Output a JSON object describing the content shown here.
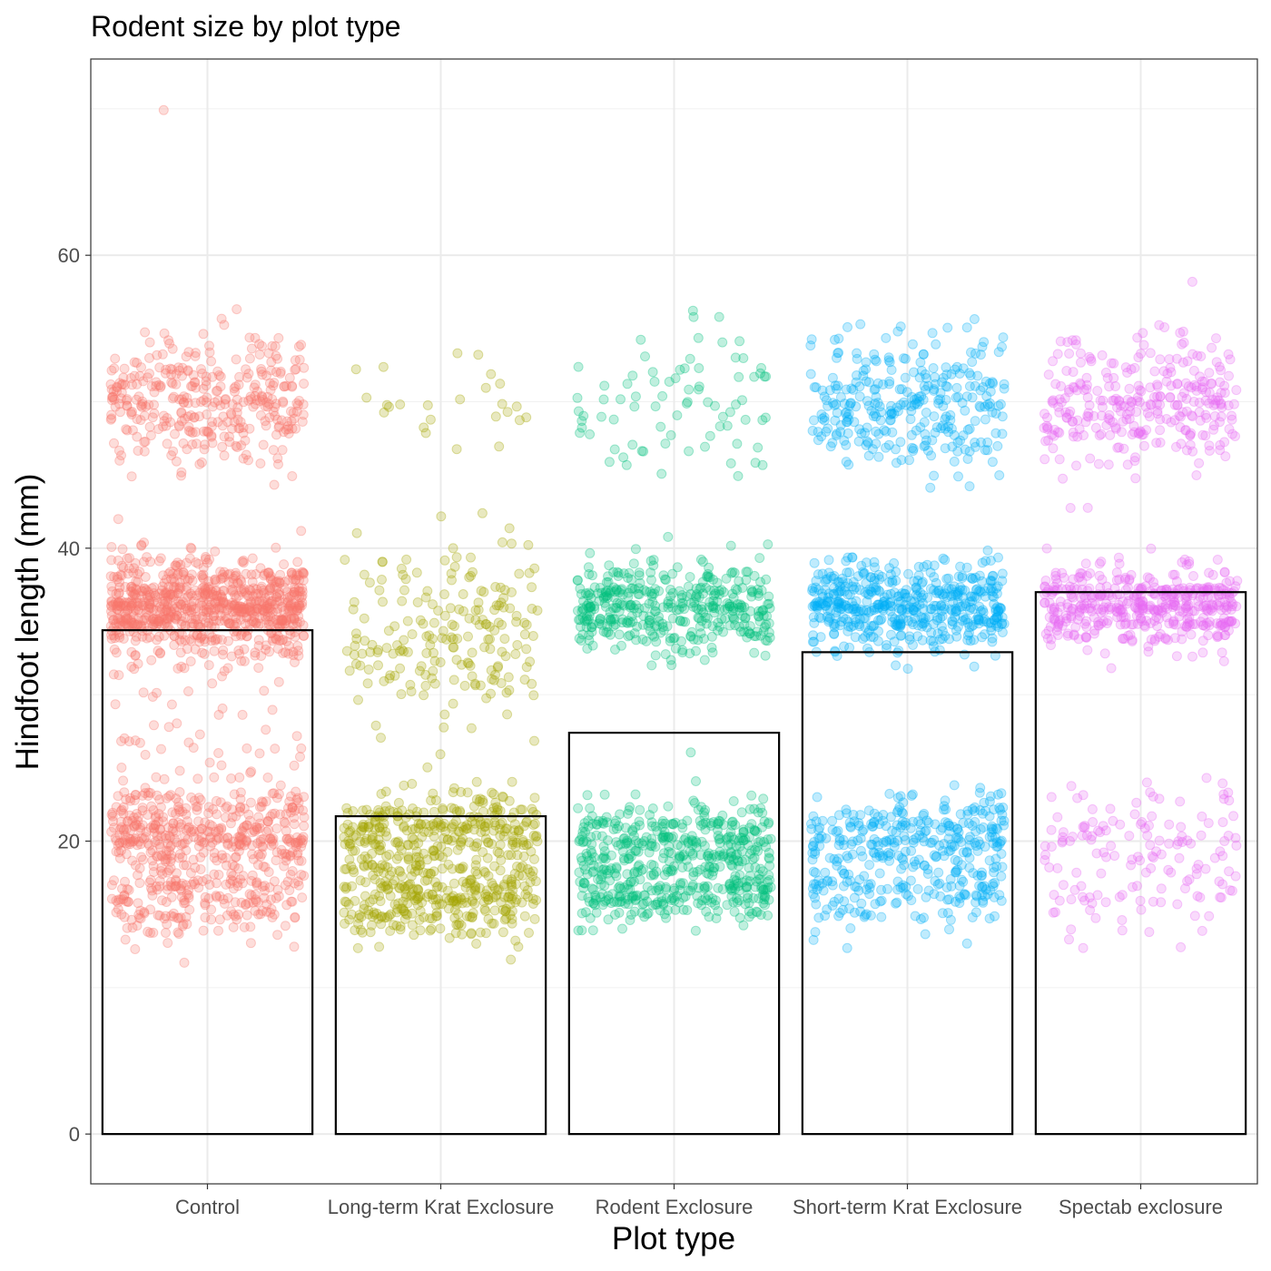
{
  "chart_data": {
    "type": "bar",
    "title": "Rodent size by plot type",
    "xlabel": "Plot type",
    "ylabel": "Hindfoot length (mm)",
    "categories": [
      "Control",
      "Long-term Krat Exclosure",
      "Rodent Exclosure",
      "Short-term Krat Exclosure",
      "Spectab exclosure"
    ],
    "values": [
      34.4,
      21.7,
      27.4,
      32.9,
      37.0
    ],
    "ylim": [
      -3.4,
      73.4
    ],
    "yticks": [
      "0",
      "20",
      "40",
      "60"
    ],
    "ytick_values": [
      0,
      20,
      40,
      60
    ],
    "grid": true,
    "bar_style": "hollow black outline",
    "overlay": {
      "type": "jittered scatter",
      "alpha": 0.25,
      "colors": [
        "#F8766D",
        "#A3A500",
        "#00BF7D",
        "#00B0F6",
        "#E76BF3"
      ],
      "clusters": [
        [
          {
            "mean": 50,
            "sd": 2.2,
            "n": 350
          },
          {
            "mean": 36,
            "sd": 1.6,
            "n": 800
          },
          {
            "mean": 20.5,
            "sd": 1.5,
            "n": 400
          },
          {
            "mean": 16,
            "sd": 1.2,
            "n": 200
          },
          {
            "mean": 28,
            "sd": 4,
            "n": 60
          },
          {
            "mean": 70,
            "sd": 0,
            "n": 1
          }
        ],
        [
          {
            "mean": 50,
            "sd": 2,
            "n": 25
          },
          {
            "mean": 34,
            "sd": 3,
            "n": 200
          },
          {
            "mean": 20.5,
            "sd": 1.4,
            "n": 300
          },
          {
            "mean": 16,
            "sd": 1.3,
            "n": 300
          }
        ],
        [
          {
            "mean": 50,
            "sd": 2.5,
            "n": 80
          },
          {
            "mean": 36,
            "sd": 1.5,
            "n": 400
          },
          {
            "mean": 20,
            "sd": 1.3,
            "n": 300
          },
          {
            "mean": 16.5,
            "sd": 1,
            "n": 250
          }
        ],
        [
          {
            "mean": 50,
            "sd": 2.3,
            "n": 300
          },
          {
            "mean": 36,
            "sd": 1.5,
            "n": 500
          },
          {
            "mean": 20.5,
            "sd": 1.3,
            "n": 250
          },
          {
            "mean": 16.5,
            "sd": 1.2,
            "n": 150
          }
        ],
        [
          {
            "mean": 50,
            "sd": 2.2,
            "n": 300
          },
          {
            "mean": 36,
            "sd": 1.3,
            "n": 450
          },
          {
            "mean": 20.5,
            "sd": 1.5,
            "n": 100
          },
          {
            "mean": 16,
            "sd": 1.3,
            "n": 50
          }
        ]
      ]
    }
  }
}
